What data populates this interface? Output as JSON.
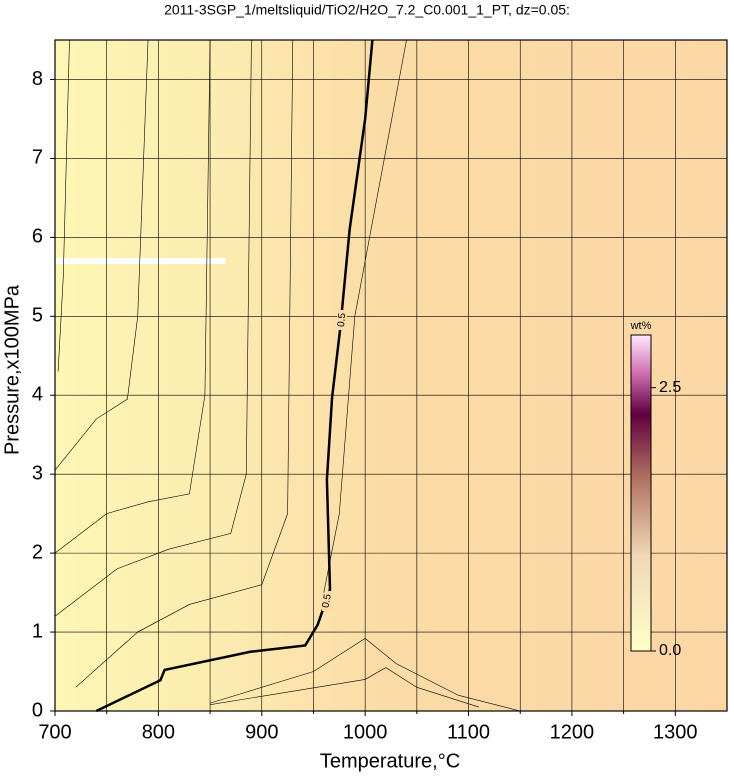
{
  "chart_data": {
    "type": "contour",
    "title": "2011-3SGP_1/meltsliquid/TiO2/H2O_7.2_C0.001_1_PT, dz=0.05:",
    "xlabel": "Temperature,°C",
    "ylabel": "Pressure,x100MPa",
    "xlim": [
      700,
      1350
    ],
    "ylim": [
      0,
      8.5
    ],
    "xticks": [
      700,
      800,
      900,
      1000,
      1100,
      1200,
      1300
    ],
    "xminor": [
      750,
      850,
      950,
      1050,
      1150,
      1250
    ],
    "yticks": [
      0,
      1,
      2,
      3,
      4,
      5,
      6,
      7,
      8
    ],
    "grid": true,
    "line_color": "#000000",
    "contours": [
      {
        "label": "0.5",
        "bold": true,
        "x": [
          740,
          802,
          806,
          889,
          942,
          954,
          966,
          963,
          968,
          976,
          985,
          1000,
          1007
        ],
        "y": [
          0,
          0.39,
          0.52,
          0.75,
          0.83,
          1.09,
          1.54,
          2.93,
          3.97,
          4.86,
          6.1,
          7.5,
          8.5
        ]
      },
      {
        "x": [
          703,
          708,
          710,
          714
        ],
        "y": [
          4.3,
          5.5,
          6.5,
          8.5
        ]
      },
      {
        "x": [
          700,
          740,
          770,
          780,
          790
        ],
        "y": [
          3.05,
          3.7,
          3.95,
          5,
          8.5
        ]
      },
      {
        "x": [
          700,
          750,
          790,
          830,
          845,
          850
        ],
        "y": [
          2.0,
          2.5,
          2.65,
          2.75,
          4,
          8.5
        ]
      },
      {
        "x": [
          700,
          760,
          810,
          870,
          885,
          890
        ],
        "y": [
          1.2,
          1.8,
          2.05,
          2.25,
          3,
          8.5
        ]
      },
      {
        "x": [
          720,
          780,
          830,
          900,
          925,
          930
        ],
        "y": [
          0.3,
          1.0,
          1.35,
          1.6,
          2.5,
          8.5
        ]
      },
      {
        "x": [
          960,
          975,
          990,
          1040
        ],
        "y": [
          1.5,
          2.5,
          5,
          8.5
        ]
      },
      {
        "x": [
          850,
          950,
          1000,
          1030,
          1090,
          1150
        ],
        "y": [
          0.1,
          0.5,
          0.92,
          0.6,
          0.2,
          0
        ]
      },
      {
        "x": [
          850,
          1000,
          1020,
          1050,
          1110
        ],
        "y": [
          0.08,
          0.4,
          0.55,
          0.3,
          0.05
        ]
      }
    ],
    "white_band": {
      "x": [
        700,
        865
      ],
      "y": 5.7
    },
    "colorbar": {
      "label": "wt%",
      "lim": [
        0,
        3
      ],
      "ticks": [
        {
          "value": 0,
          "label": "0.0"
        },
        2.5
      ]
    }
  }
}
